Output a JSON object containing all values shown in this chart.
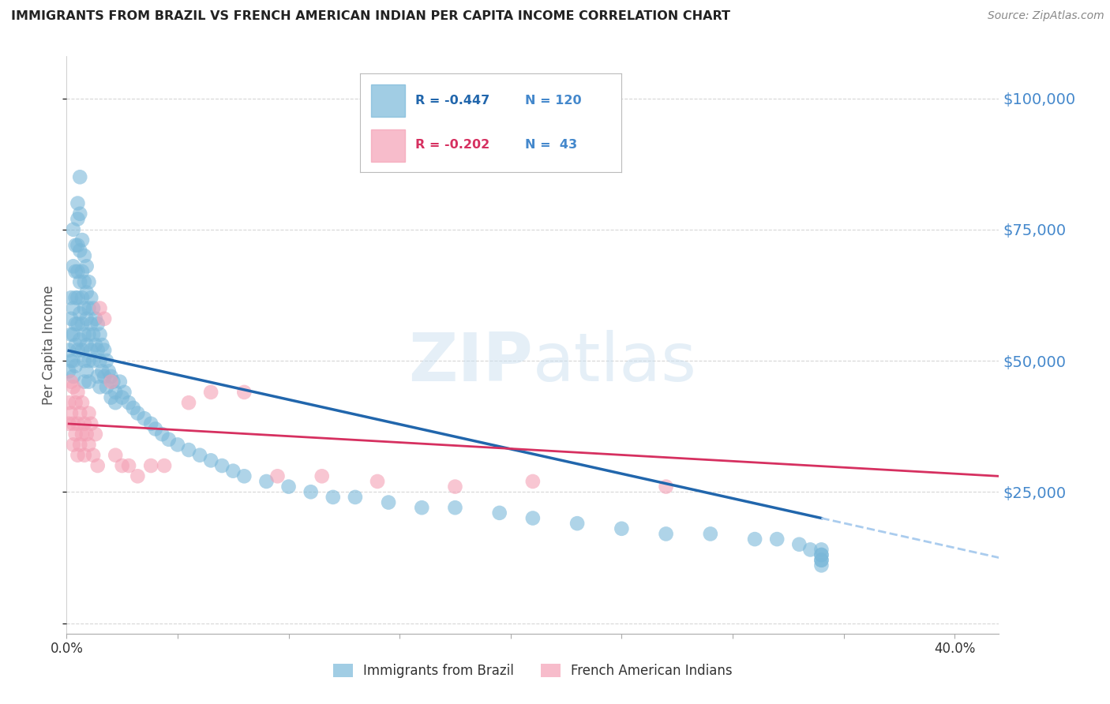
{
  "title": "IMMIGRANTS FROM BRAZIL VS FRENCH AMERICAN INDIAN PER CAPITA INCOME CORRELATION CHART",
  "source": "Source: ZipAtlas.com",
  "ylabel": "Per Capita Income",
  "yticks": [
    0,
    25000,
    50000,
    75000,
    100000
  ],
  "xlim": [
    0.0,
    0.42
  ],
  "ylim": [
    -2000,
    108000
  ],
  "watermark_zip": "ZIP",
  "watermark_atlas": "atlas",
  "series1_name": "Immigrants from Brazil",
  "series1_color": "#7ab8d9",
  "series1_R": -0.447,
  "series1_N": 120,
  "series1_x": [
    0.001,
    0.001,
    0.002,
    0.002,
    0.002,
    0.002,
    0.003,
    0.003,
    0.003,
    0.003,
    0.003,
    0.003,
    0.004,
    0.004,
    0.004,
    0.004,
    0.004,
    0.004,
    0.005,
    0.005,
    0.005,
    0.005,
    0.005,
    0.005,
    0.005,
    0.006,
    0.006,
    0.006,
    0.006,
    0.006,
    0.006,
    0.007,
    0.007,
    0.007,
    0.007,
    0.007,
    0.008,
    0.008,
    0.008,
    0.008,
    0.008,
    0.008,
    0.009,
    0.009,
    0.009,
    0.009,
    0.009,
    0.01,
    0.01,
    0.01,
    0.01,
    0.01,
    0.011,
    0.011,
    0.011,
    0.012,
    0.012,
    0.012,
    0.013,
    0.013,
    0.014,
    0.014,
    0.014,
    0.015,
    0.015,
    0.015,
    0.016,
    0.016,
    0.017,
    0.017,
    0.018,
    0.018,
    0.019,
    0.02,
    0.02,
    0.021,
    0.022,
    0.022,
    0.024,
    0.025,
    0.026,
    0.028,
    0.03,
    0.032,
    0.035,
    0.038,
    0.04,
    0.043,
    0.046,
    0.05,
    0.055,
    0.06,
    0.065,
    0.07,
    0.075,
    0.08,
    0.09,
    0.1,
    0.11,
    0.12,
    0.13,
    0.145,
    0.16,
    0.175,
    0.195,
    0.21,
    0.23,
    0.25,
    0.27,
    0.29,
    0.31,
    0.32,
    0.33,
    0.335,
    0.34,
    0.34,
    0.34,
    0.34,
    0.34,
    0.34
  ],
  "series1_y": [
    52000,
    48000,
    55000,
    62000,
    58000,
    50000,
    68000,
    75000,
    60000,
    55000,
    50000,
    47000,
    72000,
    67000,
    62000,
    57000,
    53000,
    49000,
    80000,
    77000,
    72000,
    67000,
    62000,
    57000,
    52000,
    85000,
    78000,
    71000,
    65000,
    59000,
    54000,
    73000,
    67000,
    62000,
    57000,
    52000,
    70000,
    65000,
    60000,
    55000,
    50000,
    46000,
    68000,
    63000,
    58000,
    53000,
    48000,
    65000,
    60000,
    55000,
    50000,
    46000,
    62000,
    57000,
    52000,
    60000,
    55000,
    50000,
    58000,
    53000,
    57000,
    52000,
    47000,
    55000,
    50000,
    45000,
    53000,
    48000,
    52000,
    47000,
    50000,
    45000,
    48000,
    47000,
    43000,
    46000,
    44000,
    42000,
    46000,
    43000,
    44000,
    42000,
    41000,
    40000,
    39000,
    38000,
    37000,
    36000,
    35000,
    34000,
    33000,
    32000,
    31000,
    30000,
    29000,
    28000,
    27000,
    26000,
    25000,
    24000,
    24000,
    23000,
    22000,
    22000,
    21000,
    20000,
    19000,
    18000,
    17000,
    17000,
    16000,
    16000,
    15000,
    14000,
    14000,
    13000,
    13000,
    12000,
    12000,
    11000
  ],
  "series2_name": "French American Indians",
  "series2_color": "#f4a0b5",
  "series2_R": -0.202,
  "series2_N": 43,
  "series2_x": [
    0.001,
    0.001,
    0.002,
    0.002,
    0.003,
    0.003,
    0.003,
    0.004,
    0.004,
    0.005,
    0.005,
    0.005,
    0.006,
    0.006,
    0.007,
    0.007,
    0.008,
    0.008,
    0.009,
    0.01,
    0.01,
    0.011,
    0.012,
    0.013,
    0.014,
    0.015,
    0.017,
    0.02,
    0.022,
    0.025,
    0.028,
    0.032,
    0.038,
    0.044,
    0.055,
    0.065,
    0.08,
    0.095,
    0.115,
    0.14,
    0.175,
    0.21,
    0.27
  ],
  "series2_y": [
    42000,
    38000,
    46000,
    40000,
    45000,
    38000,
    34000,
    42000,
    36000,
    44000,
    38000,
    32000,
    40000,
    34000,
    42000,
    36000,
    38000,
    32000,
    36000,
    40000,
    34000,
    38000,
    32000,
    36000,
    30000,
    60000,
    58000,
    46000,
    32000,
    30000,
    30000,
    28000,
    30000,
    30000,
    42000,
    44000,
    44000,
    28000,
    28000,
    27000,
    26000,
    27000,
    26000
  ],
  "line1_solid_color": "#2166ac",
  "line1_dash_color": "#aaccee",
  "line2_color": "#d63060",
  "background_color": "#ffffff",
  "grid_color": "#cccccc",
  "title_color": "#222222",
  "ytick_color": "#4488cc",
  "xtick_color": "#333333",
  "source_color": "#888888",
  "legend_R1": "R = -0.447",
  "legend_N1": "N = 120",
  "legend_R2": "R = -0.202",
  "legend_N2": "N =  43"
}
